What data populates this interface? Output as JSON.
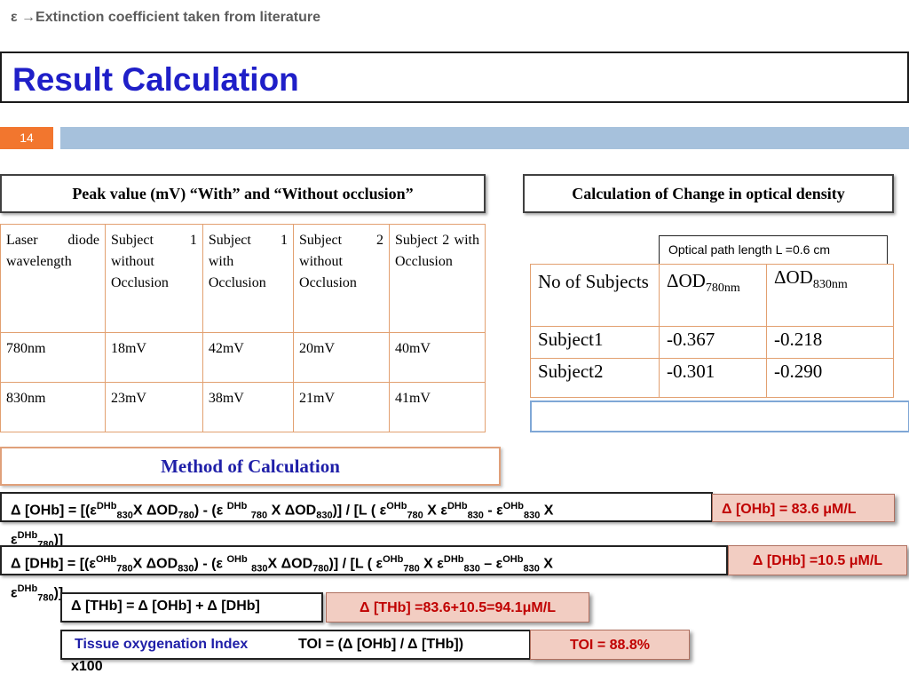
{
  "title": "Result Calculation",
  "slide_number": "14",
  "peak_caption": "Peak value (mV) “With” and “Without occlusion”",
  "od_caption": "Calculation of Change in optical density",
  "table1": {
    "headers": [
      "Laser diode wavelength",
      "Subject 1 without Occlusion",
      "Subject 1 with Occlusion",
      "Subject 2 without Occlusion",
      "Subject 2 with Occlusion"
    ],
    "rows": [
      [
        "780nm",
        "18mV",
        "42mV",
        "20mV",
        "40mV"
      ],
      [
        "830nm",
        "23mV",
        "38mV",
        "21mV",
        "41mV"
      ]
    ]
  },
  "optical_path": "Optical path length L =0.6 cm",
  "table2": {
    "header_col1": "No of Subjects",
    "header_col2_main": "ΔOD",
    "header_col2_sub": "780nm",
    "header_col3_main": "ΔOD",
    "header_col3_sub": "830nm",
    "rows": [
      [
        "Subject1",
        "-0.367",
        "-0.218"
      ],
      [
        "Subject2",
        "-0.301",
        "-0.290"
      ]
    ]
  },
  "extinction_note": "ε →Extinction coefficient taken from literature",
  "method_caption": "Method of Calculation",
  "results": {
    "ohb": "Δ [OHb] = 83.6 μM/L",
    "dhb": "Δ [DHb] =10.5 μM/L",
    "thb_eq": "Δ [THb] = Δ [OHb] + Δ [DHb]",
    "thb": "Δ [THb] =83.6+10.5=94.1μM/L",
    "toi_label": "Tissue oxygenation Index",
    "toi_formula": "TOI = (Δ [OHb] / Δ [THb])",
    "toi_x100": "x100",
    "toi": "TOI = 88.8%"
  }
}
